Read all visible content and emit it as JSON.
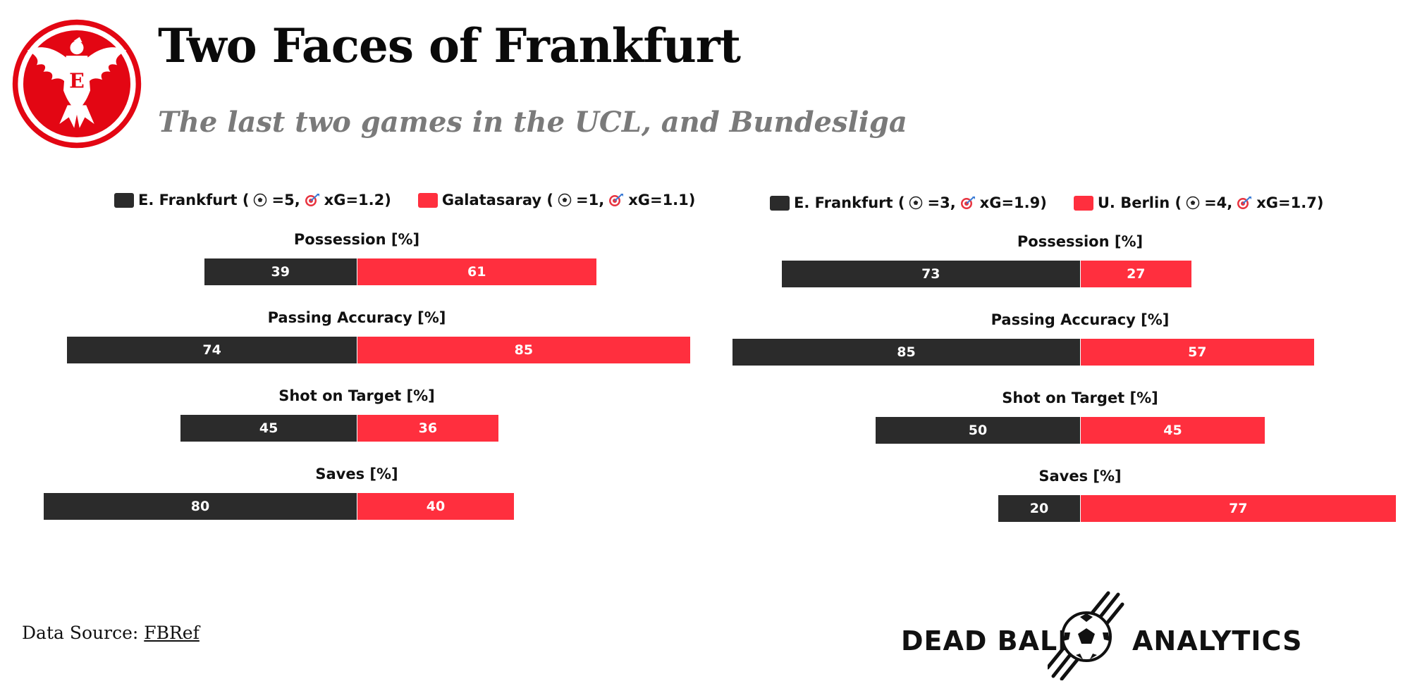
{
  "title": "Two Faces of Frankfurt",
  "subtitle": "The last two games in the UCL, and Bundesliga",
  "logo": {
    "name": "Eintracht Frankfurt eagle crest",
    "letter": "E",
    "color": "#e30613"
  },
  "colors": {
    "home": "#2b2b2b",
    "away": "#ff2f3e",
    "title": "#0a0a0a",
    "subtitle": "#7a7a7a"
  },
  "chart_data": [
    {
      "type": "bar",
      "orientation": "horizontal-diverging",
      "competition": "UCL",
      "legend": [
        {
          "team": "E. Frankfurt",
          "goals": "5",
          "xg": "xG=1.2",
          "label": "E. Frankfurt (",
          "sep": " =5, ",
          "close": ")"
        },
        {
          "team": "Galatasaray",
          "goals": "1",
          "xg": "xG=1.1",
          "label": "Galatasaray (",
          "sep": " =1, ",
          "close": ")"
        }
      ],
      "categories": [
        "Possession [%]",
        "Passing Accuracy [%]",
        "Shot on Target [%]",
        "Saves [%]"
      ],
      "series": [
        {
          "name": "E. Frankfurt",
          "values": [
            39,
            74,
            45,
            80
          ]
        },
        {
          "name": "Galatasaray",
          "values": [
            61,
            85,
            36,
            40
          ]
        }
      ]
    },
    {
      "type": "bar",
      "orientation": "horizontal-diverging",
      "competition": "Bundesliga",
      "legend": [
        {
          "team": "E. Frankfurt",
          "goals": "3",
          "xg": "xG=1.9",
          "label": "E. Frankfurt (",
          "sep": " =3, ",
          "close": ")"
        },
        {
          "team": "U. Berlin",
          "goals": "4",
          "xg": "xG=1.7",
          "label": "U. Berlin (",
          "sep": " =4, ",
          "close": ")"
        }
      ],
      "categories": [
        "Possession [%]",
        "Passing Accuracy [%]",
        "Shot on Target [%]",
        "Saves [%]"
      ],
      "series": [
        {
          "name": "E. Frankfurt",
          "values": [
            73,
            85,
            50,
            20
          ]
        },
        {
          "name": "U. Berlin",
          "values": [
            27,
            57,
            45,
            77
          ]
        }
      ]
    }
  ],
  "footer": {
    "source_prefix": "Data Source: ",
    "source_link": "FBRef",
    "brand_left": "DEAD BALL",
    "brand_right": "ANALYTICS"
  }
}
